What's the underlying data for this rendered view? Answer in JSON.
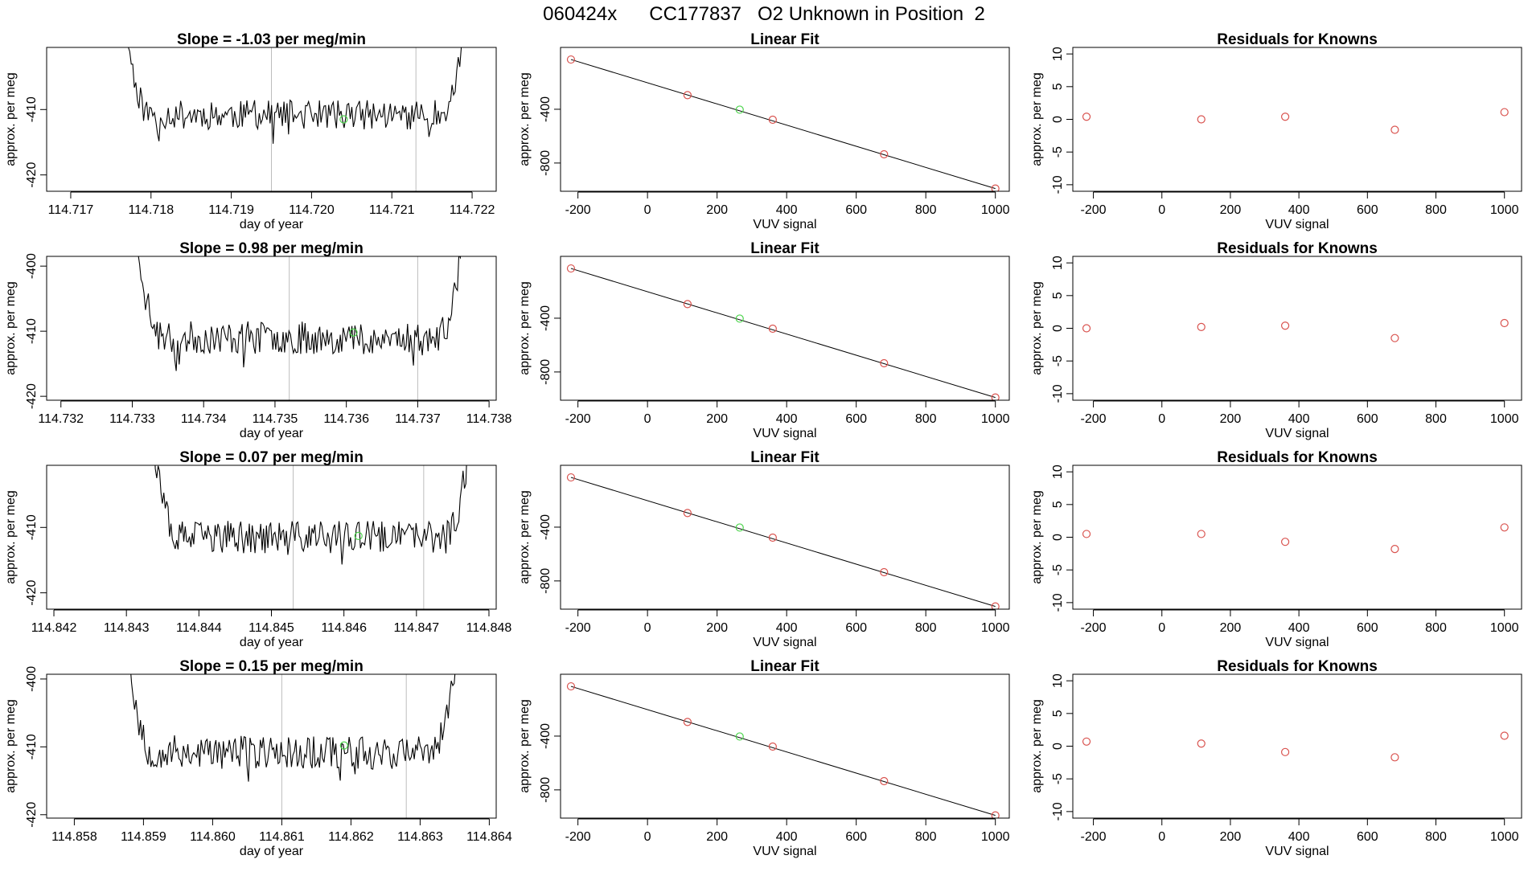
{
  "page_title": "060424x      CC177837   O2 Unknown in Position  2",
  "chart_data": [
    {
      "type": "line",
      "row": 0,
      "title": "Slope =  -1.03  per meg/min",
      "xlabel": "day of year",
      "ylabel": "approx. per meg",
      "xlim": [
        114.7167,
        114.7223
      ],
      "ylim": [
        -422.5,
        -400.5
      ],
      "xticks": [
        "114.717",
        "114.718",
        "114.719",
        "114.720",
        "114.721",
        "114.722"
      ],
      "yticks": [
        -420,
        -410
      ],
      "vlines": [
        114.7195,
        114.7213
      ],
      "series_x_range": [
        114.7176,
        114.722
      ],
      "series_y_mean": -410.8,
      "series_y_amp": 1.6,
      "seed": 11,
      "highlight": {
        "x": 114.7204,
        "y": -411.5
      }
    },
    {
      "type": "scatter",
      "row": 0,
      "title": "Linear Fit",
      "xlabel": "VUV signal",
      "ylabel": "approx. per meg",
      "xlim": [
        -250,
        1040
      ],
      "ylim": [
        -1010,
        60
      ],
      "xticks": [
        -200,
        0,
        200,
        400,
        600,
        800,
        1000
      ],
      "yticks": [
        -400,
        -800
      ],
      "knowns": {
        "x": [
          -220,
          115,
          360,
          680,
          1000
        ],
        "y": [
          -30,
          -295,
          -478,
          -735,
          -990
        ]
      },
      "unknown": {
        "x": 265,
        "y": -403
      },
      "fit": {
        "x": [
          -220,
          1000
        ],
        "y": [
          -30,
          -990
        ]
      }
    },
    {
      "type": "scatter",
      "row": 0,
      "title": "Residuals for Knowns",
      "xlabel": "VUV signal",
      "ylabel": "approx. per meg",
      "xlim": [
        -260,
        1050
      ],
      "ylim": [
        -11,
        11
      ],
      "xticks": [
        -200,
        0,
        200,
        400,
        600,
        800,
        1000
      ],
      "yticks": [
        10,
        5,
        0,
        -5,
        -10
      ],
      "x": [
        -220,
        115,
        360,
        680,
        1000
      ],
      "y": [
        0.4,
        0.0,
        0.4,
        -1.6,
        1.1
      ]
    },
    {
      "type": "line",
      "row": 1,
      "title": "Slope =  0.98  per meg/min",
      "xlabel": "day of year",
      "ylabel": "approx. per meg",
      "xlim": [
        114.7318,
        114.7381
      ],
      "ylim": [
        -420.6,
        -398.5
      ],
      "xticks": [
        "114.732",
        "114.733",
        "114.734",
        "114.735",
        "114.736",
        "114.737",
        "114.738"
      ],
      "yticks": [
        -400,
        -410,
        -420
      ],
      "vlines": [
        114.7352,
        114.737
      ],
      "series_x_range": [
        114.733,
        114.7377
      ],
      "series_y_mean": -411.0,
      "series_y_amp": 1.8,
      "seed": 23,
      "highlight": {
        "x": 114.7361,
        "y": -410.2
      }
    },
    {
      "type": "scatter",
      "row": 1,
      "title": "Linear Fit",
      "xlabel": "VUV signal",
      "ylabel": "approx. per meg",
      "xlim": [
        -250,
        1040
      ],
      "ylim": [
        -1010,
        60
      ],
      "xticks": [
        -200,
        0,
        200,
        400,
        600,
        800,
        1000
      ],
      "yticks": [
        -400,
        -800
      ],
      "knowns": {
        "x": [
          -220,
          115,
          360,
          680,
          1000
        ],
        "y": [
          -30,
          -295,
          -478,
          -735,
          -990
        ]
      },
      "unknown": {
        "x": 265,
        "y": -403
      },
      "fit": {
        "x": [
          -220,
          1000
        ],
        "y": [
          -30,
          -990
        ]
      }
    },
    {
      "type": "scatter",
      "row": 1,
      "title": "Residuals for Knowns",
      "xlabel": "VUV signal",
      "ylabel": "approx. per meg",
      "xlim": [
        -260,
        1050
      ],
      "ylim": [
        -11,
        11
      ],
      "xticks": [
        -200,
        0,
        200,
        400,
        600,
        800,
        1000
      ],
      "yticks": [
        10,
        5,
        0,
        -5,
        -10
      ],
      "x": [
        -220,
        115,
        360,
        680,
        1000
      ],
      "y": [
        0.0,
        0.2,
        0.4,
        -1.5,
        0.8
      ]
    },
    {
      "type": "line",
      "row": 2,
      "title": "Slope =  0.07  per meg/min",
      "xlabel": "day of year",
      "ylabel": "approx. per meg",
      "xlim": [
        114.8419,
        114.8481
      ],
      "ylim": [
        -422.5,
        -400.5
      ],
      "xticks": [
        "114.842",
        "114.843",
        "114.844",
        "114.845",
        "114.846",
        "114.847",
        "114.848"
      ],
      "yticks": [
        -420,
        -410
      ],
      "vlines": [
        114.8453,
        114.8471
      ],
      "series_x_range": [
        114.8433,
        114.8478
      ],
      "series_y_mean": -411.5,
      "series_y_amp": 1.8,
      "seed": 37,
      "highlight": {
        "x": 114.8462,
        "y": -411.3
      }
    },
    {
      "type": "scatter",
      "row": 2,
      "title": "Linear Fit",
      "xlabel": "VUV signal",
      "ylabel": "approx. per meg",
      "xlim": [
        -250,
        1040
      ],
      "ylim": [
        -1010,
        60
      ],
      "xticks": [
        -200,
        0,
        200,
        400,
        600,
        800,
        1000
      ],
      "yticks": [
        -400,
        -800
      ],
      "knowns": {
        "x": [
          -220,
          115,
          360,
          680,
          1000
        ],
        "y": [
          -30,
          -295,
          -478,
          -735,
          -990
        ]
      },
      "unknown": {
        "x": 265,
        "y": -403
      },
      "fit": {
        "x": [
          -220,
          1000
        ],
        "y": [
          -30,
          -990
        ]
      }
    },
    {
      "type": "scatter",
      "row": 2,
      "title": "Residuals for Knowns",
      "xlabel": "VUV signal",
      "ylabel": "approx. per meg",
      "xlim": [
        -260,
        1050
      ],
      "ylim": [
        -11,
        11
      ],
      "xticks": [
        -200,
        0,
        200,
        400,
        600,
        800,
        1000
      ],
      "yticks": [
        10,
        5,
        0,
        -5,
        -10
      ],
      "x": [
        -220,
        115,
        360,
        680,
        1000
      ],
      "y": [
        0.5,
        0.5,
        -0.7,
        -1.8,
        1.5
      ]
    },
    {
      "type": "line",
      "row": 3,
      "title": "Slope =  0.15  per meg/min",
      "xlabel": "day of year",
      "ylabel": "approx. per meg",
      "xlim": [
        114.8576,
        114.8641
      ],
      "ylim": [
        -420.5,
        -399.3
      ],
      "xticks": [
        "114.858",
        "114.859",
        "114.860",
        "114.861",
        "114.862",
        "114.863",
        "114.864"
      ],
      "yticks": [
        -400,
        -410,
        -420
      ],
      "vlines": [
        114.861,
        114.8628
      ],
      "series_x_range": [
        114.8587,
        114.8636
      ],
      "series_y_mean": -410.8,
      "series_y_amp": 1.8,
      "seed": 53,
      "highlight": {
        "x": 114.8619,
        "y": -409.8
      }
    },
    {
      "type": "scatter",
      "row": 3,
      "title": "Linear Fit",
      "xlabel": "VUV signal",
      "ylabel": "approx. per meg",
      "xlim": [
        -250,
        1040
      ],
      "ylim": [
        -1010,
        60
      ],
      "xticks": [
        -200,
        0,
        200,
        400,
        600,
        800,
        1000
      ],
      "yticks": [
        -400,
        -800
      ],
      "knowns": {
        "x": [
          -220,
          115,
          360,
          680,
          1000
        ],
        "y": [
          -30,
          -295,
          -478,
          -735,
          -990
        ]
      },
      "unknown": {
        "x": 265,
        "y": -403
      },
      "fit": {
        "x": [
          -220,
          1000
        ],
        "y": [
          -30,
          -990
        ]
      }
    },
    {
      "type": "scatter",
      "row": 3,
      "title": "Residuals for Knowns",
      "xlabel": "VUV signal",
      "ylabel": "approx. per meg",
      "xlim": [
        -260,
        1050
      ],
      "ylim": [
        -11,
        11
      ],
      "xticks": [
        -200,
        0,
        200,
        400,
        600,
        800,
        1000
      ],
      "yticks": [
        10,
        5,
        0,
        -5,
        -10
      ],
      "x": [
        -220,
        115,
        360,
        680,
        1000
      ],
      "y": [
        0.7,
        0.4,
        -0.9,
        -1.7,
        1.6
      ]
    }
  ],
  "colors": {
    "line": "#000000",
    "vline": "#bdbdbd",
    "known_marker": "#d9534f",
    "unknown_marker": "#4cd44c"
  }
}
